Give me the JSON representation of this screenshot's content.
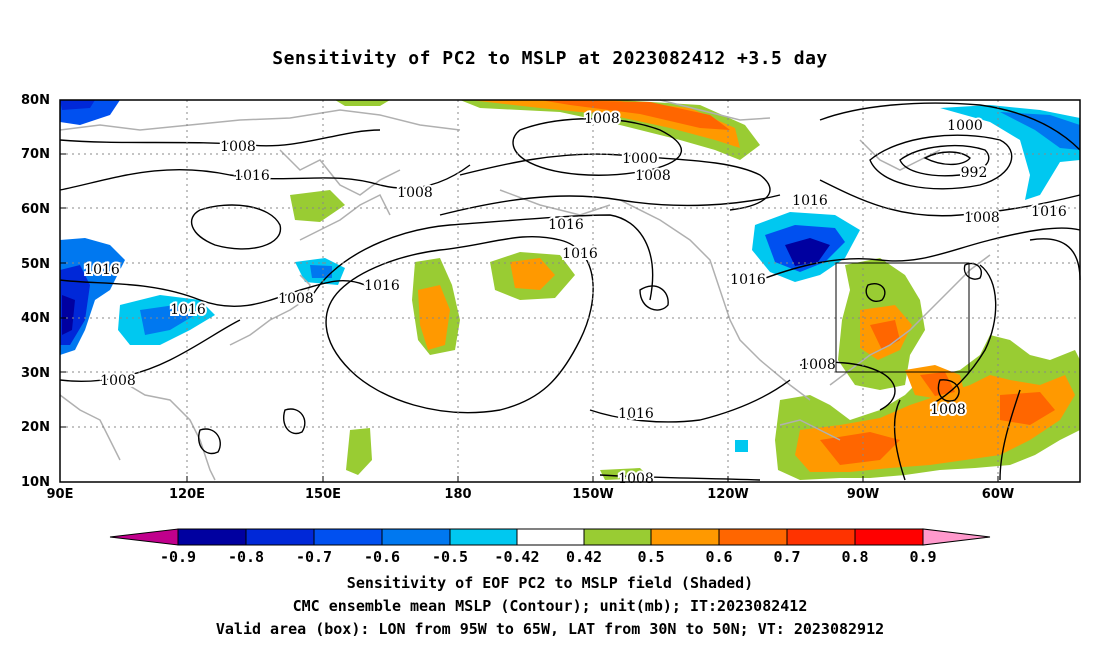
{
  "title": "Sensitivity of PC2 to MSLP at 2023082412 +3.5 day",
  "lat_labels": [
    "80N",
    "70N",
    "60N",
    "50N",
    "40N",
    "30N",
    "20N",
    "10N"
  ],
  "lon_labels": [
    "90E",
    "120E",
    "150E",
    "180",
    "150W",
    "120W",
    "90W",
    "60W"
  ],
  "colorbar": {
    "labels": [
      "-0.9",
      "-0.8",
      "-0.7",
      "-0.6",
      "-0.5",
      "-0.42",
      "0.42",
      "0.5",
      "0.6",
      "0.7",
      "0.8",
      "0.9"
    ],
    "colors": [
      "#c0008c",
      "#0000a0",
      "#0028d8",
      "#0050f0",
      "#0078f0",
      "#00c8f0",
      "#ffffff",
      "#99cc33",
      "#ff9900",
      "#ff6600",
      "#ff3300",
      "#ff0000",
      "#ff99cc"
    ]
  },
  "contour_labels": [
    "1008",
    "1016",
    "1008",
    "1016",
    "1016",
    "1008",
    "1016",
    "1000",
    "1008",
    "1008",
    "1016",
    "1016",
    "1016",
    "1016",
    "1008",
    "1016",
    "1008",
    "1000",
    "992",
    "1008",
    "1016",
    "1008",
    "1008"
  ],
  "captions": [
    "Sensitivity of EOF PC2 to MSLP field (Shaded)",
    "CMC ensemble mean MSLP (Contour); unit(mb); IT:2023082412",
    "Valid area (box): LON from 95W to 65W, LAT from 30N to 50N; VT: 2023082912"
  ],
  "valid_box": {
    "lon_west": -95,
    "lon_east": -65,
    "lat_south": 30,
    "lat_north": 50
  }
}
